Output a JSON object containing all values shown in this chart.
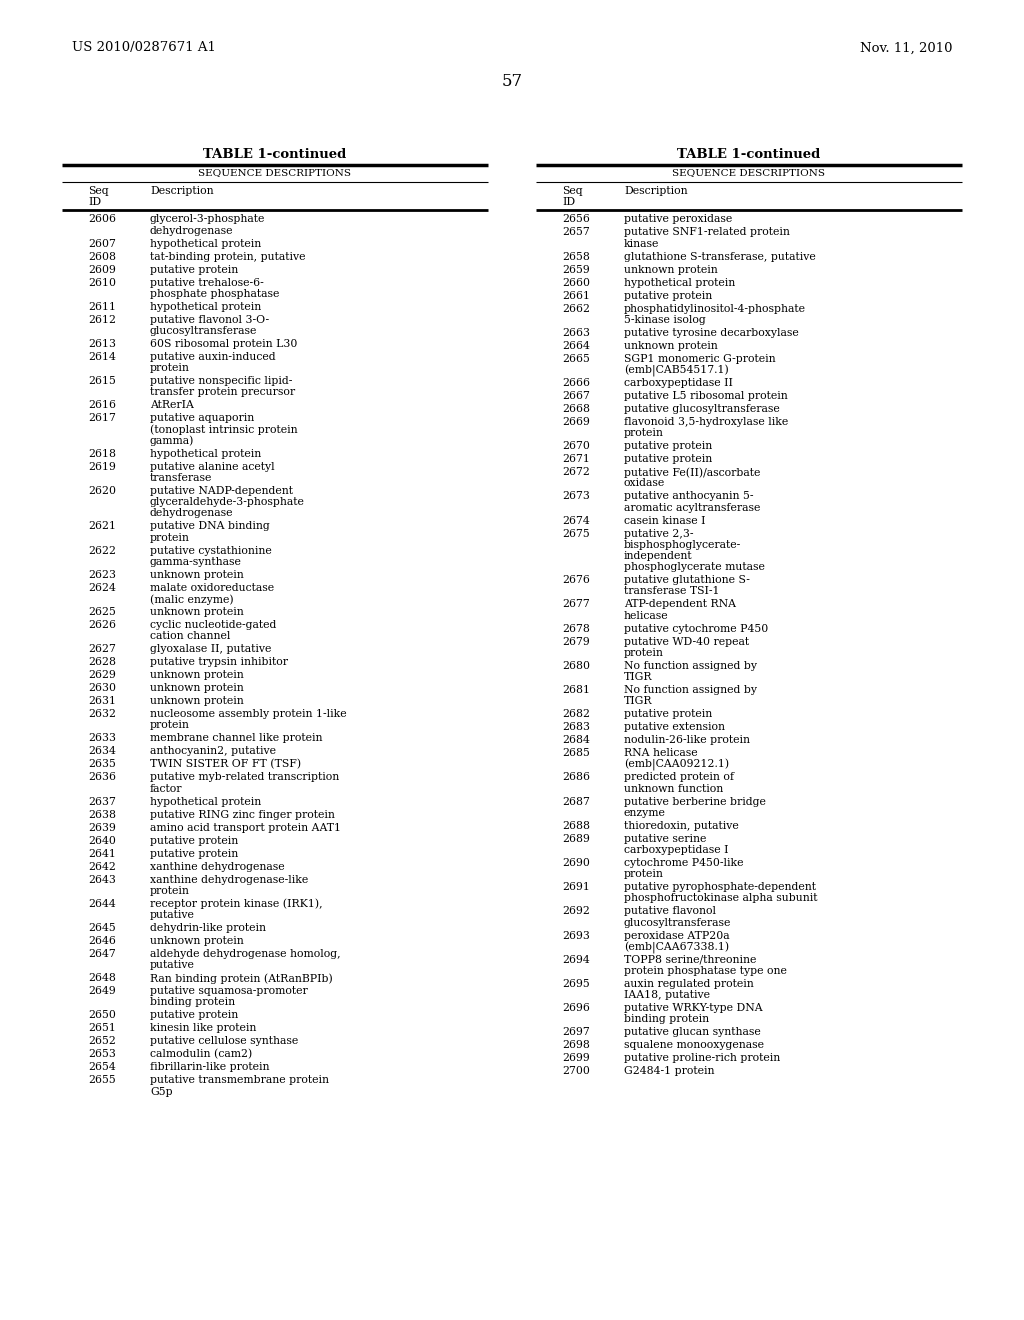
{
  "header_left": "US 2010/0287671 A1",
  "header_right": "Nov. 11, 2010",
  "page_number": "57",
  "table_title": "TABLE 1-continued",
  "section_header": "SEQUENCE DESCRIPTIONS",
  "col1_header1": "Seq",
  "col1_header2": "ID",
  "col2_header": "Description",
  "left_table": [
    [
      "2606",
      "glycerol-3-phosphate\ndehydrogenase"
    ],
    [
      "2607",
      "hypothetical protein"
    ],
    [
      "2608",
      "tat-binding protein, putative"
    ],
    [
      "2609",
      "putative protein"
    ],
    [
      "2610",
      "putative trehalose-6-\nphosphate phosphatase"
    ],
    [
      "2611",
      "hypothetical protein"
    ],
    [
      "2612",
      "putative flavonol 3-O-\nglucosyltransferase"
    ],
    [
      "2613",
      "60S ribosomal protein L30"
    ],
    [
      "2614",
      "putative auxin-induced\nprotein"
    ],
    [
      "2615",
      "putative nonspecific lipid-\ntransfer protein precursor"
    ],
    [
      "2616",
      "AtRerIA"
    ],
    [
      "2617",
      "putative aquaporin\n(tonoplast intrinsic protein\ngamma)"
    ],
    [
      "2618",
      "hypothetical protein"
    ],
    [
      "2619",
      "putative alanine acetyl\ntransferase"
    ],
    [
      "2620",
      "putative NADP-dependent\nglyceraldehyde-3-phosphate\ndehydrogenase"
    ],
    [
      "2621",
      "putative DNA binding\nprotein"
    ],
    [
      "2622",
      "putative cystathionine\ngamma-synthase"
    ],
    [
      "2623",
      "unknown protein"
    ],
    [
      "2624",
      "malate oxidoreductase\n(malic enzyme)"
    ],
    [
      "2625",
      "unknown protein"
    ],
    [
      "2626",
      "cyclic nucleotide-gated\ncation channel"
    ],
    [
      "2627",
      "glyoxalase II, putative"
    ],
    [
      "2628",
      "putative trypsin inhibitor"
    ],
    [
      "2629",
      "unknown protein"
    ],
    [
      "2630",
      "unknown protein"
    ],
    [
      "2631",
      "unknown protein"
    ],
    [
      "2632",
      "nucleosome assembly protein 1-like\nprotein"
    ],
    [
      "2633",
      "membrane channel like protein"
    ],
    [
      "2634",
      "anthocyanin2, putative"
    ],
    [
      "2635",
      "TWIN SISTER OF FT (TSF)"
    ],
    [
      "2636",
      "putative myb-related transcription\nfactor"
    ],
    [
      "2637",
      "hypothetical protein"
    ],
    [
      "2638",
      "putative RING zinc finger protein"
    ],
    [
      "2639",
      "amino acid transport protein AAT1"
    ],
    [
      "2640",
      "putative protein"
    ],
    [
      "2641",
      "putative protein"
    ],
    [
      "2642",
      "xanthine dehydrogenase"
    ],
    [
      "2643",
      "xanthine dehydrogenase-like\nprotein"
    ],
    [
      "2644",
      "receptor protein kinase (IRK1),\nputative"
    ],
    [
      "2645",
      "dehydrin-like protein"
    ],
    [
      "2646",
      "unknown protein"
    ],
    [
      "2647",
      "aldehyde dehydrogenase homolog,\nputative"
    ],
    [
      "2648",
      "Ran binding protein (AtRanBPIb)"
    ],
    [
      "2649",
      "putative squamosa-promoter\nbinding protein"
    ],
    [
      "2650",
      "putative protein"
    ],
    [
      "2651",
      "kinesin like protein"
    ],
    [
      "2652",
      "putative cellulose synthase"
    ],
    [
      "2653",
      "calmodulin (cam2)"
    ],
    [
      "2654",
      "fibrillarin-like protein"
    ],
    [
      "2655",
      "putative transmembrane protein\nG5p"
    ]
  ],
  "right_table": [
    [
      "2656",
      "putative peroxidase"
    ],
    [
      "2657",
      "putative SNF1-related protein\nkinase"
    ],
    [
      "2658",
      "glutathione S-transferase, putative"
    ],
    [
      "2659",
      "unknown protein"
    ],
    [
      "2660",
      "hypothetical protein"
    ],
    [
      "2661",
      "putative protein"
    ],
    [
      "2662",
      "phosphatidylinositol-4-phosphate\n5-kinase isolog"
    ],
    [
      "2663",
      "putative tyrosine decarboxylase"
    ],
    [
      "2664",
      "unknown protein"
    ],
    [
      "2665",
      "SGP1 monomeric G-protein\n(emb|CAB54517.1)"
    ],
    [
      "2666",
      "carboxypeptidase II"
    ],
    [
      "2667",
      "putative L5 ribosomal protein"
    ],
    [
      "2668",
      "putative glucosyltransferase"
    ],
    [
      "2669",
      "flavonoid 3,5-hydroxylase like\nprotein"
    ],
    [
      "2670",
      "putative protein"
    ],
    [
      "2671",
      "putative protein"
    ],
    [
      "2672",
      "putative Fe(II)/ascorbate\noxidase"
    ],
    [
      "2673",
      "putative anthocyanin 5-\naromatic acyltransferase"
    ],
    [
      "2674",
      "casein kinase I"
    ],
    [
      "2675",
      "putative 2,3-\nbisphosphoglycerate-\nindependent\nphosphoglycerate mutase"
    ],
    [
      "2676",
      "putative glutathione S-\ntransferase TSI-1"
    ],
    [
      "2677",
      "ATP-dependent RNA\nhelicase"
    ],
    [
      "2678",
      "putative cytochrome P450"
    ],
    [
      "2679",
      "putative WD-40 repeat\nprotein"
    ],
    [
      "2680",
      "No function assigned by\nTIGR"
    ],
    [
      "2681",
      "No function assigned by\nTIGR"
    ],
    [
      "2682",
      "putative protein"
    ],
    [
      "2683",
      "putative extension"
    ],
    [
      "2684",
      "nodulin-26-like protein"
    ],
    [
      "2685",
      "RNA helicase\n(emb|CAA09212.1)"
    ],
    [
      "2686",
      "predicted protein of\nunknown function"
    ],
    [
      "2687",
      "putative berberine bridge\nenzyme"
    ],
    [
      "2688",
      "thioredoxin, putative"
    ],
    [
      "2689",
      "putative serine\ncarboxypeptidase I"
    ],
    [
      "2690",
      "cytochrome P450-like\nprotein"
    ],
    [
      "2691",
      "putative pyrophosphate-dependent\nphosphofructokinase alpha subunit"
    ],
    [
      "2692",
      "putative flavonol\nglucosyltransferase"
    ],
    [
      "2693",
      "peroxidase ATP20a\n(emb|CAA67338.1)"
    ],
    [
      "2694",
      "TOPP8 serine/threonine\nprotein phosphatase type one"
    ],
    [
      "2695",
      "auxin regulated protein\nIAA18, putative"
    ],
    [
      "2696",
      "putative WRKY-type DNA\nbinding protein"
    ],
    [
      "2697",
      "putative glucan synthase"
    ],
    [
      "2698",
      "squalene monooxygenase"
    ],
    [
      "2699",
      "putative proline-rich protein"
    ],
    [
      "2700",
      "G2484-1 protein"
    ]
  ],
  "bg_color": "#ffffff",
  "text_color": "#000000",
  "font_size_header": 9.5,
  "font_size_body": 7.8,
  "font_size_page": 12,
  "font_size_patent": 9.5
}
